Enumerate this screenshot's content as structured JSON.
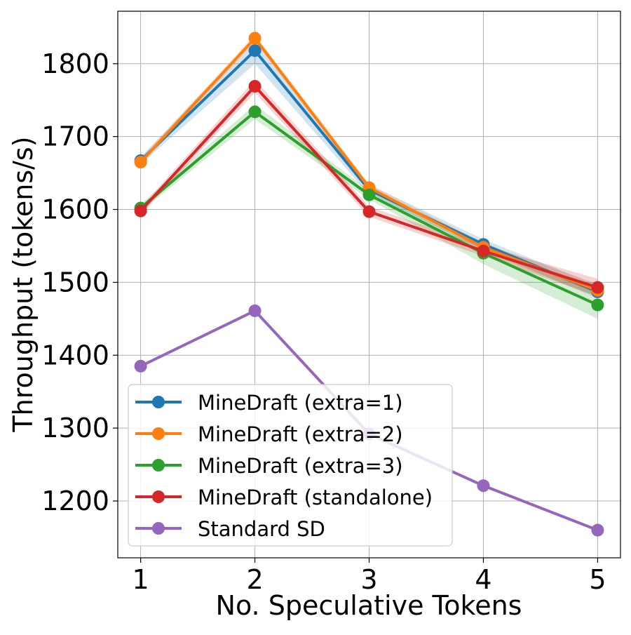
{
  "chart_data": {
    "type": "line",
    "title": "",
    "xlabel": "No. Speculative Tokens",
    "ylabel": "Throughput (tokens/s)",
    "x": [
      1,
      2,
      3,
      4,
      5
    ],
    "xticks": [
      "1",
      "2",
      "3",
      "4",
      "5"
    ],
    "yticks": [
      "1200",
      "1300",
      "1400",
      "1500",
      "1600",
      "1700",
      "1800"
    ],
    "xlim": [
      0.8,
      5.2
    ],
    "ylim": [
      1122,
      1872
    ],
    "grid": true,
    "legend_position": "lower-left",
    "series": [
      {
        "name": "MineDraft (extra=1)",
        "color": "#1f77b4",
        "values": [
          1667,
          1818,
          1627,
          1552,
          1487
        ],
        "band": [
          [
            1662,
            1672
          ],
          [
            1800,
            1836
          ],
          [
            1620,
            1634
          ],
          [
            1545,
            1559
          ],
          [
            1478,
            1496
          ]
        ]
      },
      {
        "name": "MineDraft (extra=2)",
        "color": "#ff7f0e",
        "values": [
          1665,
          1835,
          1630,
          1548,
          1489
        ],
        "band": [
          [
            1660,
            1670
          ],
          [
            1830,
            1840
          ],
          [
            1625,
            1635
          ],
          [
            1542,
            1554
          ],
          [
            1480,
            1498
          ]
        ]
      },
      {
        "name": "MineDraft (extra=3)",
        "color": "#2ca02c",
        "values": [
          1602,
          1734,
          1620,
          1540,
          1469
        ],
        "band": [
          [
            1597,
            1607
          ],
          [
            1724,
            1744
          ],
          [
            1614,
            1626
          ],
          [
            1525,
            1555
          ],
          [
            1450,
            1488
          ]
        ]
      },
      {
        "name": "MineDraft (standalone)",
        "color": "#d62728",
        "values": [
          1598,
          1769,
          1597,
          1543,
          1493
        ],
        "band": [
          [
            1593,
            1603
          ],
          [
            1760,
            1778
          ],
          [
            1590,
            1604
          ],
          [
            1536,
            1550
          ],
          [
            1481,
            1505
          ]
        ]
      },
      {
        "name": "Standard SD",
        "color": "#9467bd",
        "values": [
          1385,
          1461,
          1292,
          1221,
          1160
        ]
      }
    ]
  }
}
